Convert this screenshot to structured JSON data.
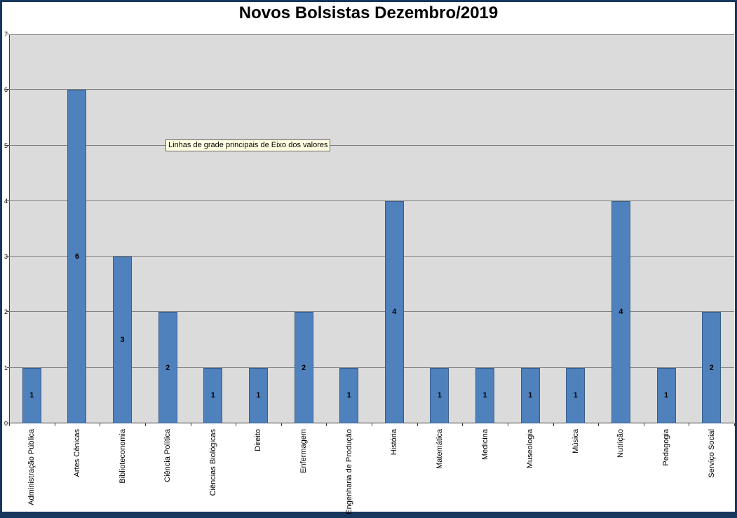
{
  "page": {
    "title": "Novos Bolsistas Dezembro/2019"
  },
  "tooltip": {
    "text": "Linhas de grade principais de Eixo dos valores"
  },
  "chart_data": {
    "type": "bar",
    "title": "Novos Bolsistas Dezembro/2019",
    "categories": [
      "Administração Pública",
      "Artes Cênicas",
      "Biblioteconomia",
      "Ciência Política",
      "Ciências Biológicas",
      "Direito",
      "Enfermagem",
      "Engenharia de Produção",
      "História",
      "Matemática",
      "Medicina",
      "Museologia",
      "Música",
      "Nutrição",
      "Pedagogia",
      "Serviço Social"
    ],
    "values": [
      1,
      6,
      3,
      2,
      1,
      1,
      2,
      1,
      4,
      1,
      1,
      1,
      1,
      4,
      1,
      2
    ],
    "data_labels_visible": true,
    "xlabel": "",
    "ylabel": "",
    "ylim": [
      0,
      7
    ],
    "yticks": [
      0,
      1,
      2,
      3,
      4,
      5,
      6,
      7
    ],
    "ytick_step": 1,
    "grid": true,
    "legend": false,
    "colors": {
      "bar_fill": "#4F81BD",
      "bar_border": "#385D8A",
      "plot_bg": "#DBDBDB",
      "gridline": "#808080",
      "frame": "#17375E",
      "tooltip_bg": "#FFFFE1"
    }
  }
}
